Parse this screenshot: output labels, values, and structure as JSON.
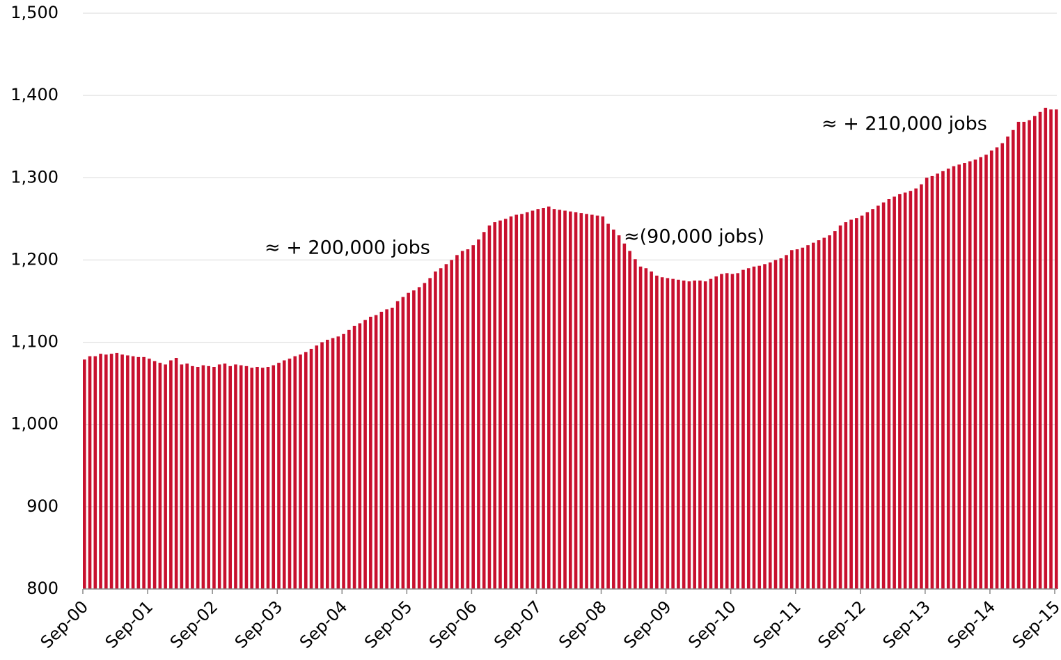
{
  "chart_data": {
    "type": "bar",
    "color": "#c8102e",
    "grid": true,
    "ylim": [
      800,
      1500
    ],
    "yticks": [
      800,
      900,
      {
        "value": 1000,
        "label": "1,000"
      },
      {
        "value": 1100,
        "label": "1,100"
      },
      {
        "value": 1200,
        "label": "1,200"
      },
      {
        "value": 1300,
        "label": "1,300"
      },
      {
        "value": 1400,
        "label": "1,400"
      },
      {
        "value": 1500,
        "label": "1,500"
      }
    ],
    "annotations": [
      "≈ + 200,000 jobs",
      "≈(90,000 jobs)",
      "≈ + 210,000 jobs"
    ],
    "categories": [
      "Sep-00",
      null,
      null,
      null,
      null,
      null,
      null,
      null,
      null,
      null,
      null,
      null,
      "Sep-01",
      null,
      null,
      null,
      null,
      null,
      null,
      null,
      null,
      null,
      null,
      null,
      "Sep-02",
      null,
      null,
      null,
      null,
      null,
      null,
      null,
      null,
      null,
      null,
      null,
      "Sep-03",
      null,
      null,
      null,
      null,
      null,
      null,
      null,
      null,
      null,
      null,
      null,
      "Sep-04",
      null,
      null,
      null,
      null,
      null,
      null,
      null,
      null,
      null,
      null,
      null,
      "Sep-05",
      null,
      null,
      null,
      null,
      null,
      null,
      null,
      null,
      null,
      null,
      null,
      "Sep-06",
      null,
      null,
      null,
      null,
      null,
      null,
      null,
      null,
      null,
      null,
      null,
      "Sep-07",
      null,
      null,
      null,
      null,
      null,
      null,
      null,
      null,
      null,
      null,
      null,
      "Sep-08",
      null,
      null,
      null,
      null,
      null,
      null,
      null,
      null,
      null,
      null,
      null,
      "Sep-09",
      null,
      null,
      null,
      null,
      null,
      null,
      null,
      null,
      null,
      null,
      null,
      "Sep-10",
      null,
      null,
      null,
      null,
      null,
      null,
      null,
      null,
      null,
      null,
      null,
      "Sep-11",
      null,
      null,
      null,
      null,
      null,
      null,
      null,
      null,
      null,
      null,
      null,
      "Sep-12",
      null,
      null,
      null,
      null,
      null,
      null,
      null,
      null,
      null,
      null,
      null,
      "Sep-13",
      null,
      null,
      null,
      null,
      null,
      null,
      null,
      null,
      null,
      null,
      null,
      "Sep-14",
      null,
      null,
      null,
      null,
      null,
      null,
      null,
      null,
      null,
      null,
      null,
      "Sep-15"
    ],
    "values": [
      1079,
      1083,
      1083,
      1086,
      1085,
      1086,
      1087,
      1085,
      1084,
      1083,
      1082,
      1082,
      1080,
      1077,
      1075,
      1073,
      1078,
      1081,
      1073,
      1074,
      1071,
      1070,
      1072,
      1071,
      1070,
      1073,
      1074,
      1071,
      1073,
      1072,
      1071,
      1069,
      1070,
      1069,
      1070,
      1072,
      1075,
      1078,
      1080,
      1083,
      1085,
      1088,
      1092,
      1096,
      1100,
      1103,
      1105,
      1107,
      1110,
      1115,
      1120,
      1123,
      1127,
      1131,
      1133,
      1137,
      1140,
      1142,
      1150,
      1155,
      1160,
      1163,
      1167,
      1172,
      1178,
      1186,
      1190,
      1195,
      1200,
      1206,
      1211,
      1213,
      1218,
      1225,
      1234,
      1242,
      1246,
      1248,
      1250,
      1253,
      1255,
      1256,
      1258,
      1260,
      1262,
      1263,
      1265,
      1262,
      1261,
      1260,
      1259,
      1258,
      1257,
      1256,
      1255,
      1254,
      1253,
      1244,
      1237,
      1230,
      1220,
      1211,
      1201,
      1192,
      1190,
      1186,
      1181,
      1179,
      1178,
      1177,
      1176,
      1175,
      1174,
      1175,
      1175,
      1174,
      1177,
      1180,
      1183,
      1184,
      1183,
      1184,
      1188,
      1190,
      1192,
      1193,
      1195,
      1197,
      1200,
      1202,
      1206,
      1212,
      1213,
      1215,
      1218,
      1221,
      1224,
      1227,
      1230,
      1235,
      1242,
      1246,
      1249,
      1251,
      1254,
      1258,
      1262,
      1266,
      1270,
      1274,
      1277,
      1280,
      1282,
      1284,
      1287,
      1292,
      1300,
      1302,
      1305,
      1308,
      1311,
      1314,
      1316,
      1318,
      1320,
      1322,
      1325,
      1328,
      1333,
      1337,
      1342,
      1350,
      1358,
      1368,
      1368,
      1370,
      1375,
      1380,
      1385,
      1383,
      1383
    ]
  }
}
